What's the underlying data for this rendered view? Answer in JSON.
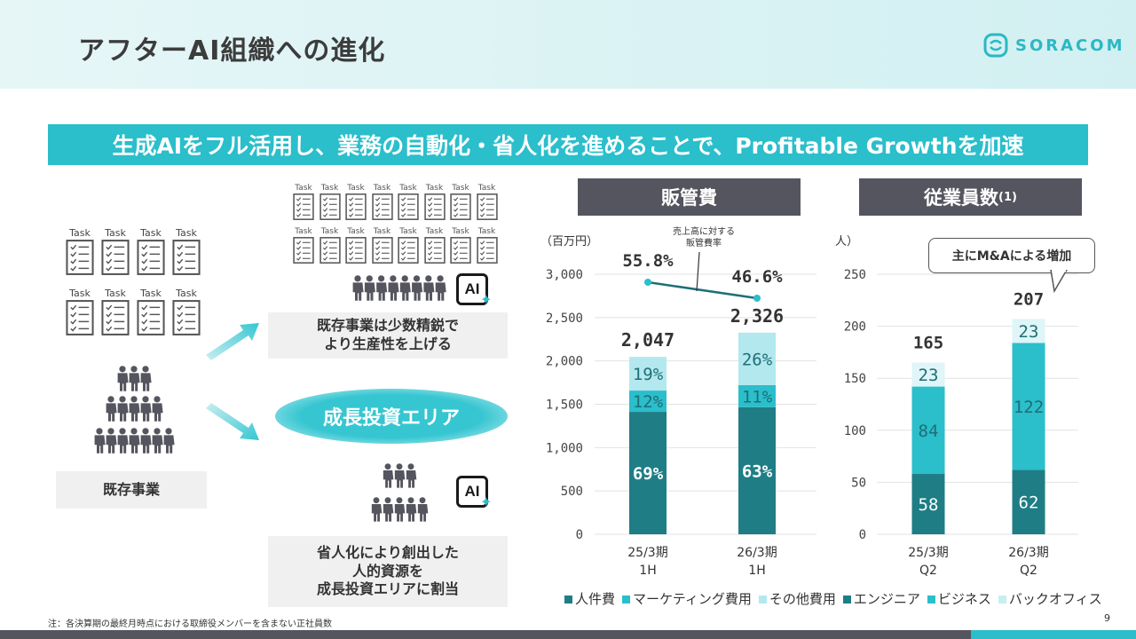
{
  "page": {
    "title": "アフターAI組織への進化",
    "logo": "SORACOM",
    "banner": "生成AIをフル活用し、業務の自動化・省人化を進めることで、Profitable Growthを加速",
    "task_label": "Task",
    "existing_business": "既存事業",
    "box_top": [
      "既存事業は少数精鋭で",
      "より生産性を上げる"
    ],
    "growth_area": "成長投資エリア",
    "box_bottom": [
      "省人化により創出した",
      "人的資源を",
      "成長投資エリアに割当"
    ],
    "ai_label": "AI",
    "note": "注：各決算期の最終月時点における取締役メンバーを含まない正社員数",
    "page_number": "9"
  },
  "colors": {
    "dark_teal": "#1e7d85",
    "teal": "#2bbecb",
    "light_teal": "#b3e8ee",
    "header_gray": "#55555f"
  },
  "chart_data": [
    {
      "type": "bar",
      "stacked": true,
      "title": "販管費",
      "unit_label": "（百万円）",
      "categories": [
        [
          "25/3期",
          "1H"
        ],
        [
          "26/3期",
          "1H"
        ]
      ],
      "totals": [
        "2,047",
        "2,326"
      ],
      "total_values": [
        2047,
        2326
      ],
      "ylim": [
        0,
        3000
      ],
      "yticks": [
        0,
        500,
        1000,
        1500,
        2000,
        2500,
        3000
      ],
      "ytick_labels": [
        "0",
        "500",
        "1,000",
        "1,500",
        "2,000",
        "2,500",
        "3,000"
      ],
      "series": [
        {
          "name": "人件費",
          "share": [
            0.69,
            0.63
          ],
          "labels": [
            "69%",
            "63%"
          ],
          "color": "#1e7d85"
        },
        {
          "name": "マーケティング費用",
          "share": [
            0.12,
            0.11
          ],
          "labels": [
            "12%",
            "11%"
          ],
          "color": "#2bbecb"
        },
        {
          "name": "その他費用",
          "share": [
            0.19,
            0.26
          ],
          "labels": [
            "19%",
            "26%"
          ],
          "color": "#b3e8ee"
        }
      ],
      "ratio_line": {
        "name": "売上高に対する販管費率",
        "annotation": [
          "売上高に対する",
          "販管費率"
        ],
        "values": [
          55.8,
          46.6
        ],
        "labels": [
          "55.8%",
          "46.6%"
        ]
      }
    },
    {
      "type": "bar",
      "stacked": true,
      "title": "従業員数",
      "title_sup": "(1)",
      "unit_label": "（人）",
      "categories": [
        [
          "25/3期",
          "Q2"
        ],
        [
          "26/3期",
          "Q2"
        ]
      ],
      "totals": [
        "165",
        "207"
      ],
      "ylim": [
        0,
        250
      ],
      "yticks": [
        0,
        50,
        100,
        150,
        200,
        250
      ],
      "ytick_labels": [
        "0",
        "50",
        "100",
        "150",
        "200",
        "250"
      ],
      "series": [
        {
          "name": "エンジニア",
          "values": [
            58,
            62
          ],
          "labels": [
            "58",
            "62"
          ],
          "color": "#1e7d85"
        },
        {
          "name": "ビジネス",
          "values": [
            84,
            122
          ],
          "labels": [
            "84",
            "122"
          ],
          "color": "#2bbecb"
        },
        {
          "name": "バックオフィス",
          "values": [
            23,
            23
          ],
          "labels": [
            "23",
            "23"
          ],
          "color": "#dff5f7"
        }
      ],
      "callout": "主にM&Aによる増加"
    }
  ]
}
